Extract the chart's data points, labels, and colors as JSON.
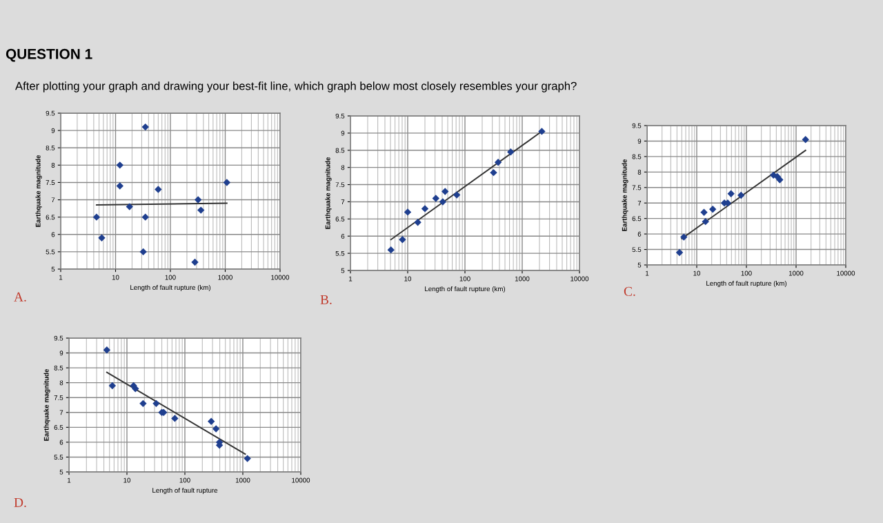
{
  "chart_data": [
    {
      "type": "scatter",
      "title": "QUESTION 1",
      "subtitle": "After plotting your graph and drawing your best-fit line, which graph below most closely resembles your graph?",
      "xlabel": "Length of fault rupture (km)",
      "ylabel": "Earthquake magnitude",
      "annotations": [
        "A."
      ],
      "log": "x",
      "xlim": [
        1,
        10000
      ],
      "xticks": [
        1,
        10,
        100,
        1000,
        10000
      ],
      "ylim": [
        5,
        9.5
      ],
      "yticks": [
        5,
        5.5,
        6,
        6.5,
        7,
        7.5,
        8,
        8.5,
        9,
        9.5
      ],
      "grid": true,
      "series": [
        {
          "color": "#1f3f8f",
          "marker": "diamond",
          "x": [
            35,
            12,
            12,
            60,
            1070,
            320,
            360,
            18,
            4.5,
            35,
            5.6,
            32,
            280
          ],
          "values": [
            9.1,
            8.0,
            7.4,
            7.3,
            7.5,
            7.0,
            6.7,
            6.8,
            6.5,
            6.5,
            5.9,
            5.5,
            5.2
          ]
        },
        {
          "type": "line",
          "color": "#333333",
          "x": [
            4.5,
            1070
          ],
          "values": [
            6.85,
            6.9
          ]
        }
      ]
    },
    {
      "type": "scatter",
      "xlabel": "Length of fault rupture (km)",
      "ylabel": "Earthquake magnitude",
      "annotations": [
        "B."
      ],
      "log": "x",
      "xlim": [
        1,
        10000
      ],
      "xticks": [
        1,
        10,
        100,
        1000,
        10000
      ],
      "ylim": [
        5,
        9.5
      ],
      "yticks": [
        5,
        5.5,
        6,
        6.5,
        7,
        7.5,
        8,
        8.5,
        9,
        9.5
      ],
      "grid": true,
      "series": [
        {
          "color": "#1f3f8f",
          "marker": "diamond",
          "x": [
            5.1,
            8.1,
            10,
            15,
            20,
            31,
            41,
            45,
            72,
            316,
            380,
            630,
            2200
          ],
          "values": [
            5.6,
            5.9,
            6.7,
            6.4,
            6.8,
            7.1,
            7.0,
            7.3,
            7.2,
            7.85,
            8.15,
            8.45,
            9.05
          ]
        },
        {
          "type": "line",
          "color": "#333333",
          "x": [
            5.1,
            2200
          ],
          "values": [
            5.9,
            9.05
          ]
        }
      ]
    },
    {
      "type": "scatter",
      "xlabel": "Length of fault rupture (km)",
      "ylabel": "Earthquake magnitude",
      "annotations": [
        "C."
      ],
      "log": "x",
      "xlim": [
        1,
        10000
      ],
      "xticks": [
        1,
        10,
        100,
        1000,
        10000
      ],
      "ylim": [
        5,
        9.5
      ],
      "yticks": [
        5,
        5.5,
        6,
        6.5,
        7,
        7.5,
        8,
        8.5,
        9,
        9.5
      ],
      "grid": true,
      "series": [
        {
          "color": "#1f3f8f",
          "marker": "diamond",
          "x": [
            4.5,
            5.5,
            14,
            15,
            21,
            36,
            42,
            49,
            78,
            350,
            420,
            470,
            1550
          ],
          "values": [
            5.4,
            5.9,
            6.7,
            6.4,
            6.8,
            7.0,
            7.0,
            7.3,
            7.25,
            7.9,
            7.85,
            7.75,
            9.05
          ]
        },
        {
          "type": "line",
          "color": "#333333",
          "x": [
            5,
            1550
          ],
          "values": [
            5.85,
            8.7
          ]
        }
      ]
    },
    {
      "type": "scatter",
      "xlabel": "Length of fault rupture",
      "ylabel": "Earthquake magnitude",
      "annotations": [
        "D."
      ],
      "log": "x",
      "xlim": [
        1,
        10000
      ],
      "xticks": [
        1,
        10,
        100,
        1000,
        10000
      ],
      "ylim": [
        5,
        9.5
      ],
      "yticks": [
        5,
        5.5,
        6,
        6.5,
        7,
        7.5,
        8,
        8.5,
        9,
        9.5
      ],
      "grid": true,
      "series": [
        {
          "color": "#1f3f8f",
          "marker": "diamond",
          "x": [
            4.5,
            5.6,
            13,
            14,
            19,
            32,
            40,
            43,
            67,
            285,
            345,
            395,
            395,
            1200
          ],
          "values": [
            9.1,
            7.9,
            7.9,
            7.8,
            7.3,
            7.3,
            7.0,
            7.0,
            6.8,
            6.7,
            6.45,
            6.0,
            5.9,
            5.45
          ]
        },
        {
          "type": "line",
          "color": "#333333",
          "x": [
            4.5,
            1100
          ],
          "values": [
            8.35,
            5.6
          ]
        }
      ]
    }
  ]
}
